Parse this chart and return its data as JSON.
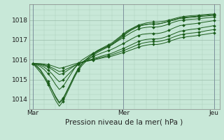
{
  "title": "Pression niveau de la mer( hPa )",
  "bg_color": "#c8e8d8",
  "line_color": "#1a5c1a",
  "grid_color_major": "#99bbaa",
  "grid_color_minor": "#aaccbb",
  "ylim": [
    1013.5,
    1018.8
  ],
  "yticks": [
    1014,
    1015,
    1016,
    1017,
    1018
  ],
  "xtick_labels": [
    "Mar",
    "Mer",
    "Jeu"
  ],
  "xtick_positions": [
    0,
    24,
    48
  ],
  "n_points": 49,
  "series": [
    [
      1015.8,
      1015.7,
      1015.5,
      1015.2,
      1014.9,
      1014.5,
      1014.1,
      1013.8,
      1014.0,
      1014.4,
      1014.8,
      1015.2,
      1015.55,
      1015.8,
      1016.0,
      1016.15,
      1016.3,
      1016.45,
      1016.55,
      1016.65,
      1016.75,
      1016.85,
      1017.0,
      1017.15,
      1017.3,
      1017.45,
      1017.55,
      1017.65,
      1017.75,
      1017.8,
      1017.85,
      1017.88,
      1017.9,
      1017.9,
      1017.92,
      1017.95,
      1018.0,
      1018.05,
      1018.1,
      1018.15,
      1018.18,
      1018.2,
      1018.22,
      1018.23,
      1018.25,
      1018.27,
      1018.28,
      1018.3,
      1018.3
    ],
    [
      1015.8,
      1015.65,
      1015.45,
      1015.1,
      1014.75,
      1014.35,
      1013.95,
      1013.65,
      1013.9,
      1014.3,
      1014.7,
      1015.1,
      1015.45,
      1015.7,
      1015.9,
      1016.05,
      1016.2,
      1016.35,
      1016.45,
      1016.55,
      1016.65,
      1016.75,
      1016.9,
      1017.05,
      1017.2,
      1017.35,
      1017.48,
      1017.58,
      1017.68,
      1017.73,
      1017.77,
      1017.8,
      1017.8,
      1017.8,
      1017.83,
      1017.88,
      1017.93,
      1017.98,
      1018.03,
      1018.08,
      1018.1,
      1018.12,
      1018.14,
      1018.15,
      1018.17,
      1018.19,
      1018.2,
      1018.22,
      1018.23
    ],
    [
      1015.8,
      1015.75,
      1015.65,
      1015.5,
      1015.3,
      1015.05,
      1014.75,
      1014.5,
      1014.65,
      1014.95,
      1015.25,
      1015.55,
      1015.8,
      1015.98,
      1016.1,
      1016.22,
      1016.33,
      1016.43,
      1016.52,
      1016.6,
      1016.68,
      1016.76,
      1016.88,
      1017.0,
      1017.12,
      1017.24,
      1017.36,
      1017.46,
      1017.55,
      1017.6,
      1017.63,
      1017.65,
      1017.65,
      1017.65,
      1017.68,
      1017.73,
      1017.8,
      1017.87,
      1017.93,
      1017.98,
      1018.0,
      1018.02,
      1018.04,
      1018.05,
      1018.07,
      1018.09,
      1018.11,
      1018.13,
      1018.15
    ],
    [
      1015.8,
      1015.78,
      1015.72,
      1015.62,
      1015.48,
      1015.3,
      1015.08,
      1014.88,
      1014.98,
      1015.18,
      1015.38,
      1015.58,
      1015.75,
      1015.88,
      1015.98,
      1016.07,
      1016.16,
      1016.24,
      1016.32,
      1016.39,
      1016.46,
      1016.53,
      1016.62,
      1016.72,
      1016.82,
      1016.92,
      1017.03,
      1017.13,
      1017.22,
      1017.28,
      1017.3,
      1017.32,
      1017.32,
      1017.32,
      1017.35,
      1017.4,
      1017.48,
      1017.57,
      1017.65,
      1017.72,
      1017.75,
      1017.78,
      1017.8,
      1017.82,
      1017.85,
      1017.88,
      1017.91,
      1017.94,
      1017.97
    ],
    [
      1015.8,
      1015.79,
      1015.76,
      1015.7,
      1015.62,
      1015.52,
      1015.38,
      1015.25,
      1015.3,
      1015.43,
      1015.56,
      1015.68,
      1015.78,
      1015.86,
      1015.93,
      1015.99,
      1016.05,
      1016.11,
      1016.17,
      1016.22,
      1016.27,
      1016.33,
      1016.41,
      1016.49,
      1016.57,
      1016.65,
      1016.74,
      1016.83,
      1016.92,
      1016.98,
      1017.02,
      1017.04,
      1017.05,
      1017.05,
      1017.08,
      1017.13,
      1017.2,
      1017.28,
      1017.36,
      1017.43,
      1017.47,
      1017.5,
      1017.53,
      1017.55,
      1017.58,
      1017.62,
      1017.65,
      1017.68,
      1017.72
    ],
    [
      1015.8,
      1015.8,
      1015.78,
      1015.74,
      1015.68,
      1015.6,
      1015.5,
      1015.4,
      1015.44,
      1015.53,
      1015.62,
      1015.71,
      1015.79,
      1015.85,
      1015.91,
      1015.96,
      1016.01,
      1016.06,
      1016.11,
      1016.16,
      1016.2,
      1016.25,
      1016.32,
      1016.39,
      1016.46,
      1016.53,
      1016.61,
      1016.69,
      1016.77,
      1016.83,
      1016.87,
      1016.9,
      1016.91,
      1016.91,
      1016.94,
      1016.99,
      1017.05,
      1017.12,
      1017.19,
      1017.25,
      1017.29,
      1017.32,
      1017.34,
      1017.36,
      1017.39,
      1017.42,
      1017.46,
      1017.49,
      1017.52
    ],
    [
      1015.8,
      1015.8,
      1015.8,
      1015.78,
      1015.75,
      1015.7,
      1015.63,
      1015.57,
      1015.6,
      1015.66,
      1015.72,
      1015.78,
      1015.83,
      1015.87,
      1015.91,
      1015.95,
      1015.99,
      1016.03,
      1016.07,
      1016.11,
      1016.14,
      1016.18,
      1016.24,
      1016.3,
      1016.36,
      1016.42,
      1016.49,
      1016.56,
      1016.63,
      1016.69,
      1016.73,
      1016.76,
      1016.77,
      1016.77,
      1016.8,
      1016.85,
      1016.91,
      1016.98,
      1017.04,
      1017.1,
      1017.13,
      1017.16,
      1017.18,
      1017.2,
      1017.23,
      1017.26,
      1017.29,
      1017.32,
      1017.35
    ],
    [
      1015.8,
      1015.58,
      1015.35,
      1015.1,
      1014.82,
      1014.5,
      1014.15,
      1013.85,
      1014.05,
      1014.42,
      1014.8,
      1015.18,
      1015.52,
      1015.78,
      1015.98,
      1016.14,
      1016.28,
      1016.4,
      1016.5,
      1016.6,
      1016.7,
      1016.8,
      1016.95,
      1017.1,
      1017.25,
      1017.4,
      1017.52,
      1017.62,
      1017.7,
      1017.75,
      1017.78,
      1017.8,
      1017.8,
      1017.8,
      1017.83,
      1017.88,
      1017.94,
      1018.0,
      1018.05,
      1018.1,
      1018.13,
      1018.15,
      1018.17,
      1018.18,
      1018.2,
      1018.22,
      1018.24,
      1018.26,
      1018.28
    ]
  ]
}
